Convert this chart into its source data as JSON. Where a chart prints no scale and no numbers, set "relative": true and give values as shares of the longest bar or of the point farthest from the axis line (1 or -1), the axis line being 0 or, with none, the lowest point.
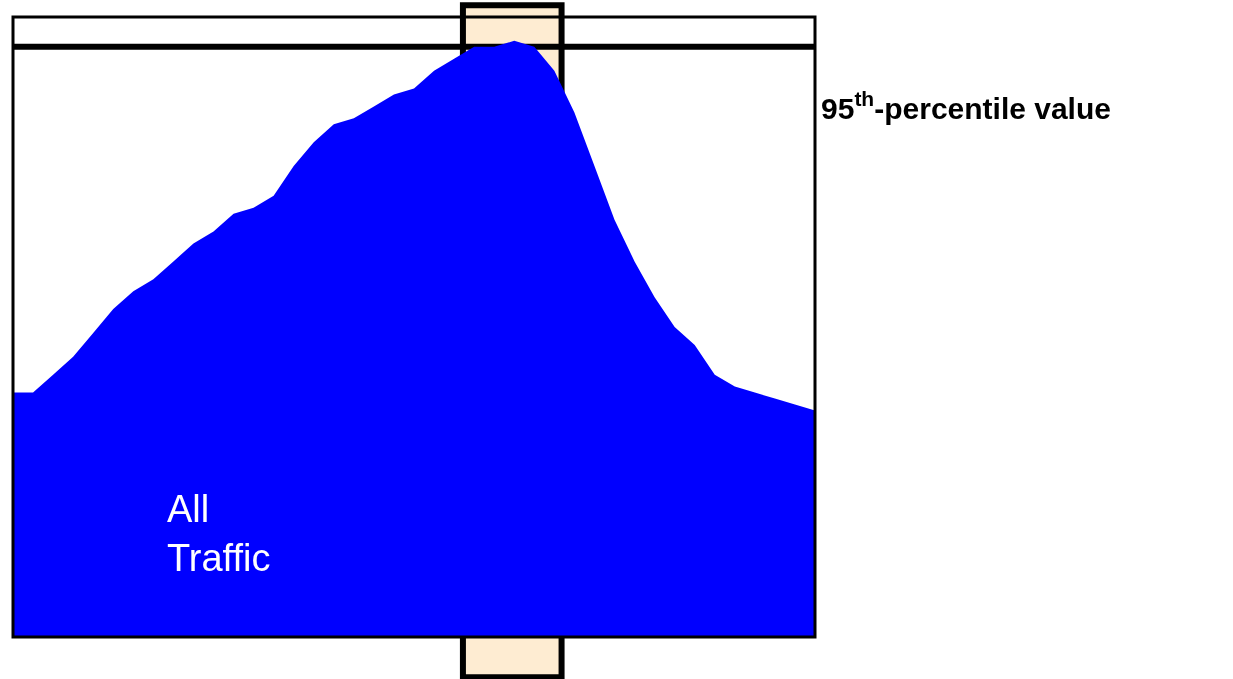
{
  "chart_data": {
    "type": "area",
    "relative": true,
    "categories": [
      null,
      null,
      null,
      null,
      null,
      null,
      null,
      null,
      null,
      null,
      null,
      null,
      null,
      null,
      null,
      null,
      null,
      null,
      null,
      null,
      null,
      null,
      null,
      null,
      null,
      null,
      null,
      null,
      null,
      null,
      null,
      null,
      null,
      null,
      null,
      null,
      null,
      null,
      null,
      null,
      null
    ],
    "series": [
      {
        "color": "#0000ff",
        "values": [
          0.41,
          0.41,
          0.44,
          0.47,
          0.51,
          0.55,
          0.58,
          0.6,
          0.63,
          0.66,
          0.68,
          0.71,
          0.72,
          0.74,
          0.79,
          0.83,
          0.86,
          0.87,
          0.89,
          0.91,
          0.92,
          0.95,
          0.97,
          0.99,
          0.99,
          1.0,
          0.99,
          0.95,
          0.88,
          0.79,
          0.7,
          0.63,
          0.57,
          0.52,
          0.49,
          0.44,
          0.42,
          0.41,
          0.4,
          0.39,
          0.38
        ]
      }
    ],
    "ref_lines": [
      {
        "axis": "y",
        "value": 0.99,
        "label": "95$^{th}$-percentile value",
        "color": "#000000"
      }
    ],
    "annotations": [
      "All\nTraffic"
    ]
  }
}
